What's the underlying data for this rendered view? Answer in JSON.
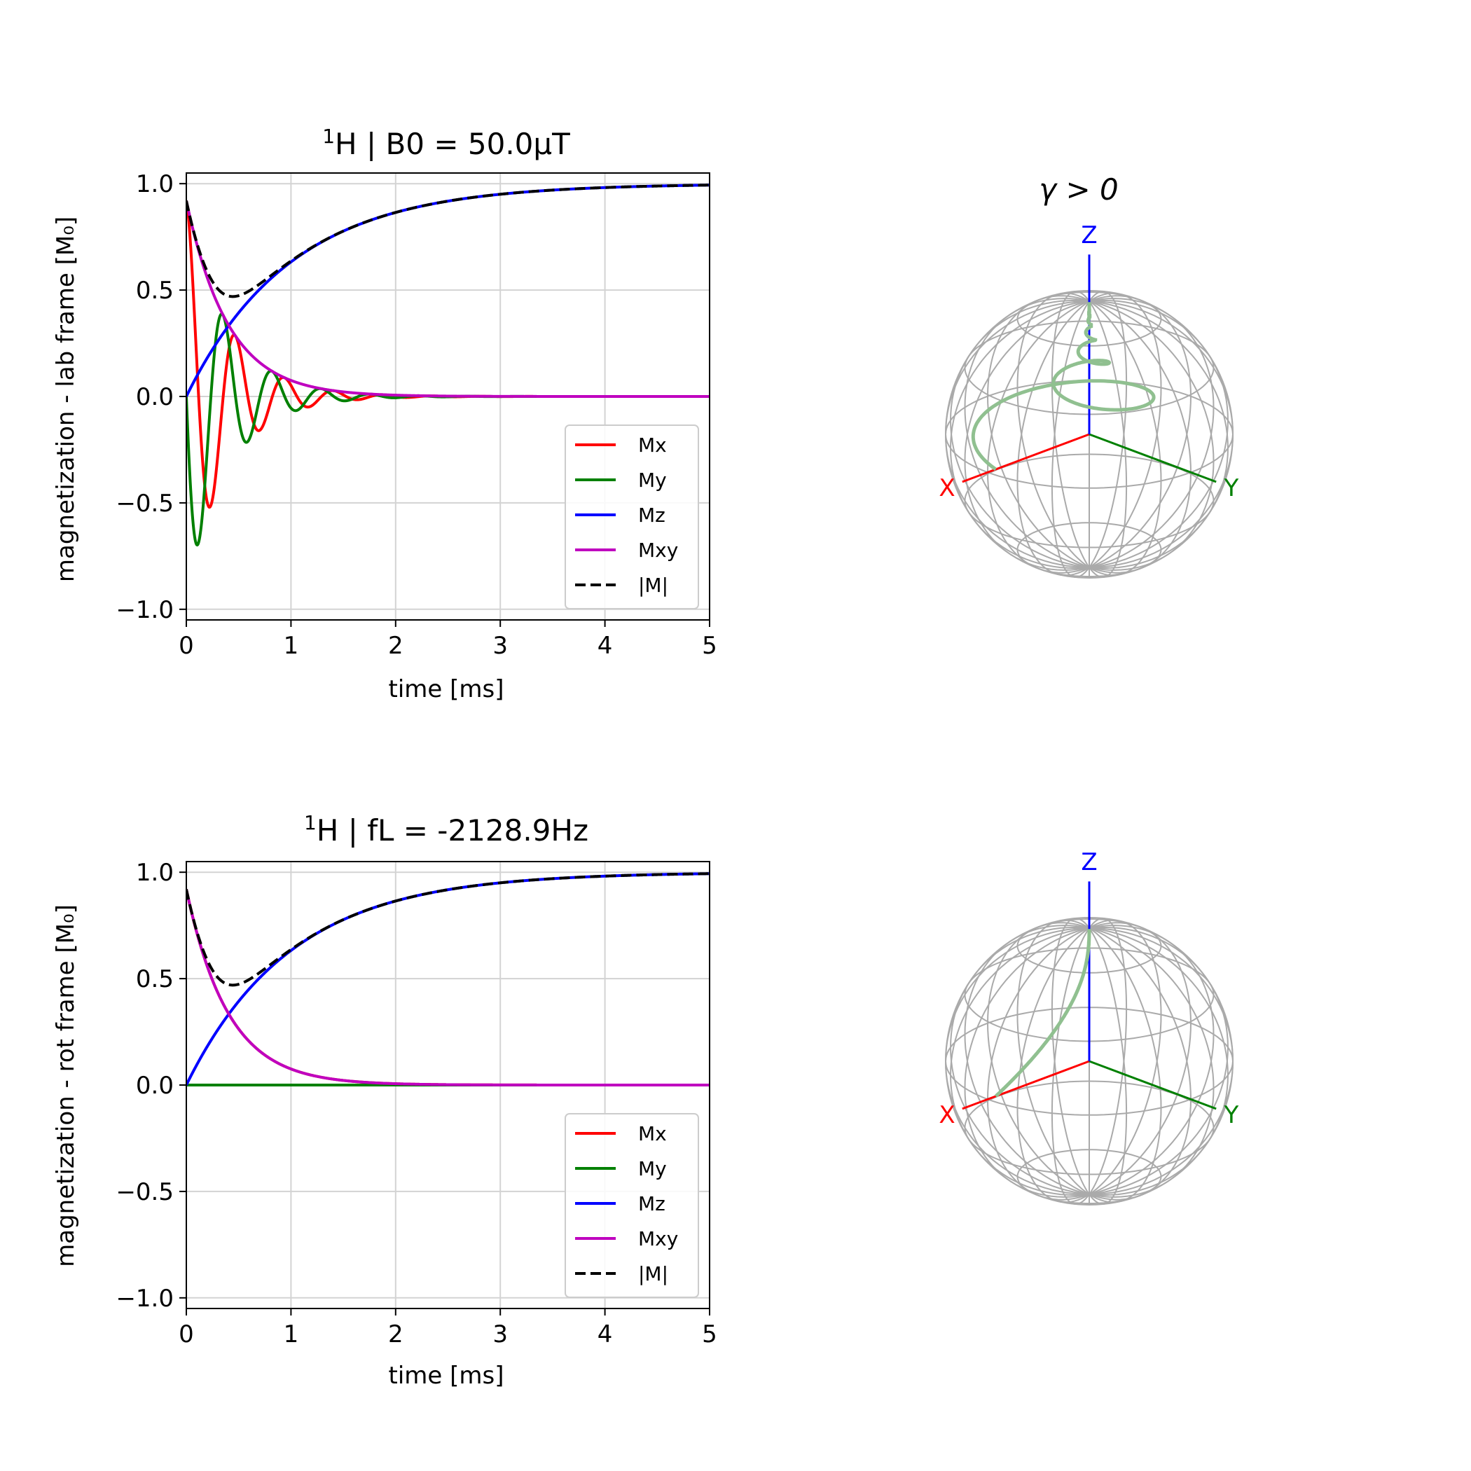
{
  "chart_data": [
    {
      "type": "line",
      "title": "¹H | B0 = 50.0μT",
      "title_parts": {
        "sup": "1",
        "rest": "H | B0 = 50.0μT"
      },
      "xlabel": "time [ms]",
      "ylabel": "magnetization - lab frame [M₀]",
      "xlim": [
        0,
        5
      ],
      "ylim": [
        -1.05,
        1.05
      ],
      "xticks": [
        0,
        1,
        2,
        3,
        4,
        5
      ],
      "yticks": [
        -1.0,
        -0.5,
        0.0,
        0.5,
        1.0
      ],
      "ytick_labels": [
        "−1.0",
        "−0.5",
        "0.0",
        "0.5",
        "1.0"
      ],
      "grid": true,
      "legend_position": "lower-right",
      "model": {
        "T1_ms": 1.0,
        "T2_ms": 0.4,
        "freq_kHz": 2.1289,
        "frame": "lab"
      },
      "series": [
        {
          "name": "Mx",
          "color": "#ff0000",
          "dash": "solid",
          "x": [
            0,
            0.05,
            0.1,
            0.15,
            0.2,
            0.25,
            0.3,
            0.4,
            0.5,
            0.6,
            0.7,
            0.8,
            0.9,
            1.0,
            1.25,
            1.5,
            2.0,
            3.0,
            5.0
          ],
          "y": [
            0.9,
            0.22,
            -0.45,
            -0.62,
            -0.58,
            -0.25,
            0.22,
            0.35,
            0.05,
            -0.24,
            -0.12,
            0.17,
            0.06,
            -0.1,
            0.06,
            -0.04,
            -0.01,
            0.0,
            0.0
          ]
        },
        {
          "name": "My",
          "color": "#008000",
          "dash": "solid",
          "x": [
            0,
            0.05,
            0.1,
            0.15,
            0.2,
            0.25,
            0.3,
            0.4,
            0.5,
            0.6,
            0.7,
            0.8,
            0.9,
            1.0,
            1.25,
            1.5,
            2.0,
            3.0,
            5.0
          ],
          "y": [
            0.0,
            -0.58,
            -0.8,
            -0.5,
            -0.05,
            0.38,
            0.5,
            0.2,
            -0.25,
            -0.31,
            -0.05,
            0.2,
            0.1,
            -0.1,
            0.0,
            0.05,
            0.02,
            0.0,
            0.0
          ]
        },
        {
          "name": "Mz",
          "color": "#0000ff",
          "dash": "solid",
          "x": [
            0,
            0.25,
            0.5,
            0.75,
            1.0,
            1.5,
            2.0,
            2.5,
            3.0,
            4.0,
            5.0
          ],
          "y": [
            0.0,
            0.22,
            0.39,
            0.53,
            0.63,
            0.78,
            0.86,
            0.92,
            0.95,
            0.98,
            0.99
          ]
        },
        {
          "name": "Mxy",
          "color": "#bf00bf",
          "dash": "solid",
          "x": [
            0,
            0.1,
            0.2,
            0.3,
            0.4,
            0.5,
            0.75,
            1.0,
            1.5,
            2.0,
            3.0,
            5.0
          ],
          "y": [
            0.92,
            0.72,
            0.56,
            0.43,
            0.34,
            0.26,
            0.14,
            0.08,
            0.02,
            0.01,
            0.0,
            0.0
          ]
        },
        {
          "name": "|M|",
          "color": "#000000",
          "dash": "dashed",
          "x": [
            0,
            0.1,
            0.2,
            0.3,
            0.4,
            0.5,
            0.6,
            0.75,
            1.0,
            1.5,
            2.0,
            2.5,
            3.0,
            4.0,
            5.0
          ],
          "y": [
            0.92,
            0.75,
            0.64,
            0.57,
            0.54,
            0.53,
            0.54,
            0.58,
            0.64,
            0.78,
            0.86,
            0.92,
            0.95,
            0.98,
            0.99
          ]
        }
      ]
    },
    {
      "type": "line",
      "title": "¹H | fL = -2128.9Hz",
      "title_parts": {
        "sup": "1",
        "rest": "H | fL = -2128.9Hz"
      },
      "xlabel": "time [ms]",
      "ylabel": "magnetization - rot frame [M₀]",
      "xlim": [
        0,
        5
      ],
      "ylim": [
        -1.05,
        1.05
      ],
      "xticks": [
        0,
        1,
        2,
        3,
        4,
        5
      ],
      "yticks": [
        -1.0,
        -0.5,
        0.0,
        0.5,
        1.0
      ],
      "ytick_labels": [
        "−1.0",
        "−0.5",
        "0.0",
        "0.5",
        "1.0"
      ],
      "grid": true,
      "legend_position": "lower-right",
      "model": {
        "T1_ms": 1.0,
        "T2_ms": 0.4,
        "freq_kHz": 0,
        "frame": "rot"
      },
      "series": [
        {
          "name": "Mx",
          "color": "#ff0000",
          "dash": "solid",
          "x": [
            0,
            0.1,
            0.2,
            0.3,
            0.4,
            0.5,
            0.75,
            1.0,
            1.5,
            2.0,
            3.0,
            5.0
          ],
          "y": [
            0.92,
            0.72,
            0.56,
            0.43,
            0.34,
            0.26,
            0.14,
            0.08,
            0.02,
            0.01,
            0.0,
            0.0
          ]
        },
        {
          "name": "My",
          "color": "#008000",
          "dash": "solid",
          "x": [
            0,
            5.0
          ],
          "y": [
            0.0,
            0.0
          ]
        },
        {
          "name": "Mz",
          "color": "#0000ff",
          "dash": "solid",
          "x": [
            0,
            0.25,
            0.5,
            0.75,
            1.0,
            1.5,
            2.0,
            2.5,
            3.0,
            4.0,
            5.0
          ],
          "y": [
            0.0,
            0.22,
            0.39,
            0.53,
            0.63,
            0.78,
            0.86,
            0.92,
            0.95,
            0.98,
            0.99
          ]
        },
        {
          "name": "Mxy",
          "color": "#bf00bf",
          "dash": "solid",
          "x": [
            0,
            0.1,
            0.2,
            0.3,
            0.4,
            0.5,
            0.75,
            1.0,
            1.5,
            2.0,
            3.0,
            5.0
          ],
          "y": [
            0.92,
            0.72,
            0.56,
            0.43,
            0.34,
            0.26,
            0.14,
            0.08,
            0.02,
            0.01,
            0.0,
            0.0
          ]
        },
        {
          "name": "|M|",
          "color": "#000000",
          "dash": "dashed",
          "x": [
            0,
            0.1,
            0.2,
            0.3,
            0.4,
            0.5,
            0.6,
            0.75,
            1.0,
            1.5,
            2.0,
            2.5,
            3.0,
            4.0,
            5.0
          ],
          "y": [
            0.92,
            0.75,
            0.64,
            0.57,
            0.54,
            0.53,
            0.54,
            0.58,
            0.64,
            0.78,
            0.86,
            0.92,
            0.95,
            0.98,
            0.99
          ]
        }
      ]
    }
  ],
  "spheres": [
    {
      "title": "γ > 0",
      "axis_labels": {
        "x": "X",
        "y": "Y",
        "z": "Z"
      },
      "axis_colors": {
        "x": "#ff0000",
        "y": "#008000",
        "z": "#0000ff"
      },
      "grid_color": "#aaaaaa",
      "trajectory_color": "#90c090",
      "frame": "lab"
    },
    {
      "title": "",
      "axis_labels": {
        "x": "X",
        "y": "Y",
        "z": "Z"
      },
      "axis_colors": {
        "x": "#ff0000",
        "y": "#008000",
        "z": "#0000ff"
      },
      "grid_color": "#aaaaaa",
      "trajectory_color": "#90c090",
      "frame": "rot"
    }
  ]
}
